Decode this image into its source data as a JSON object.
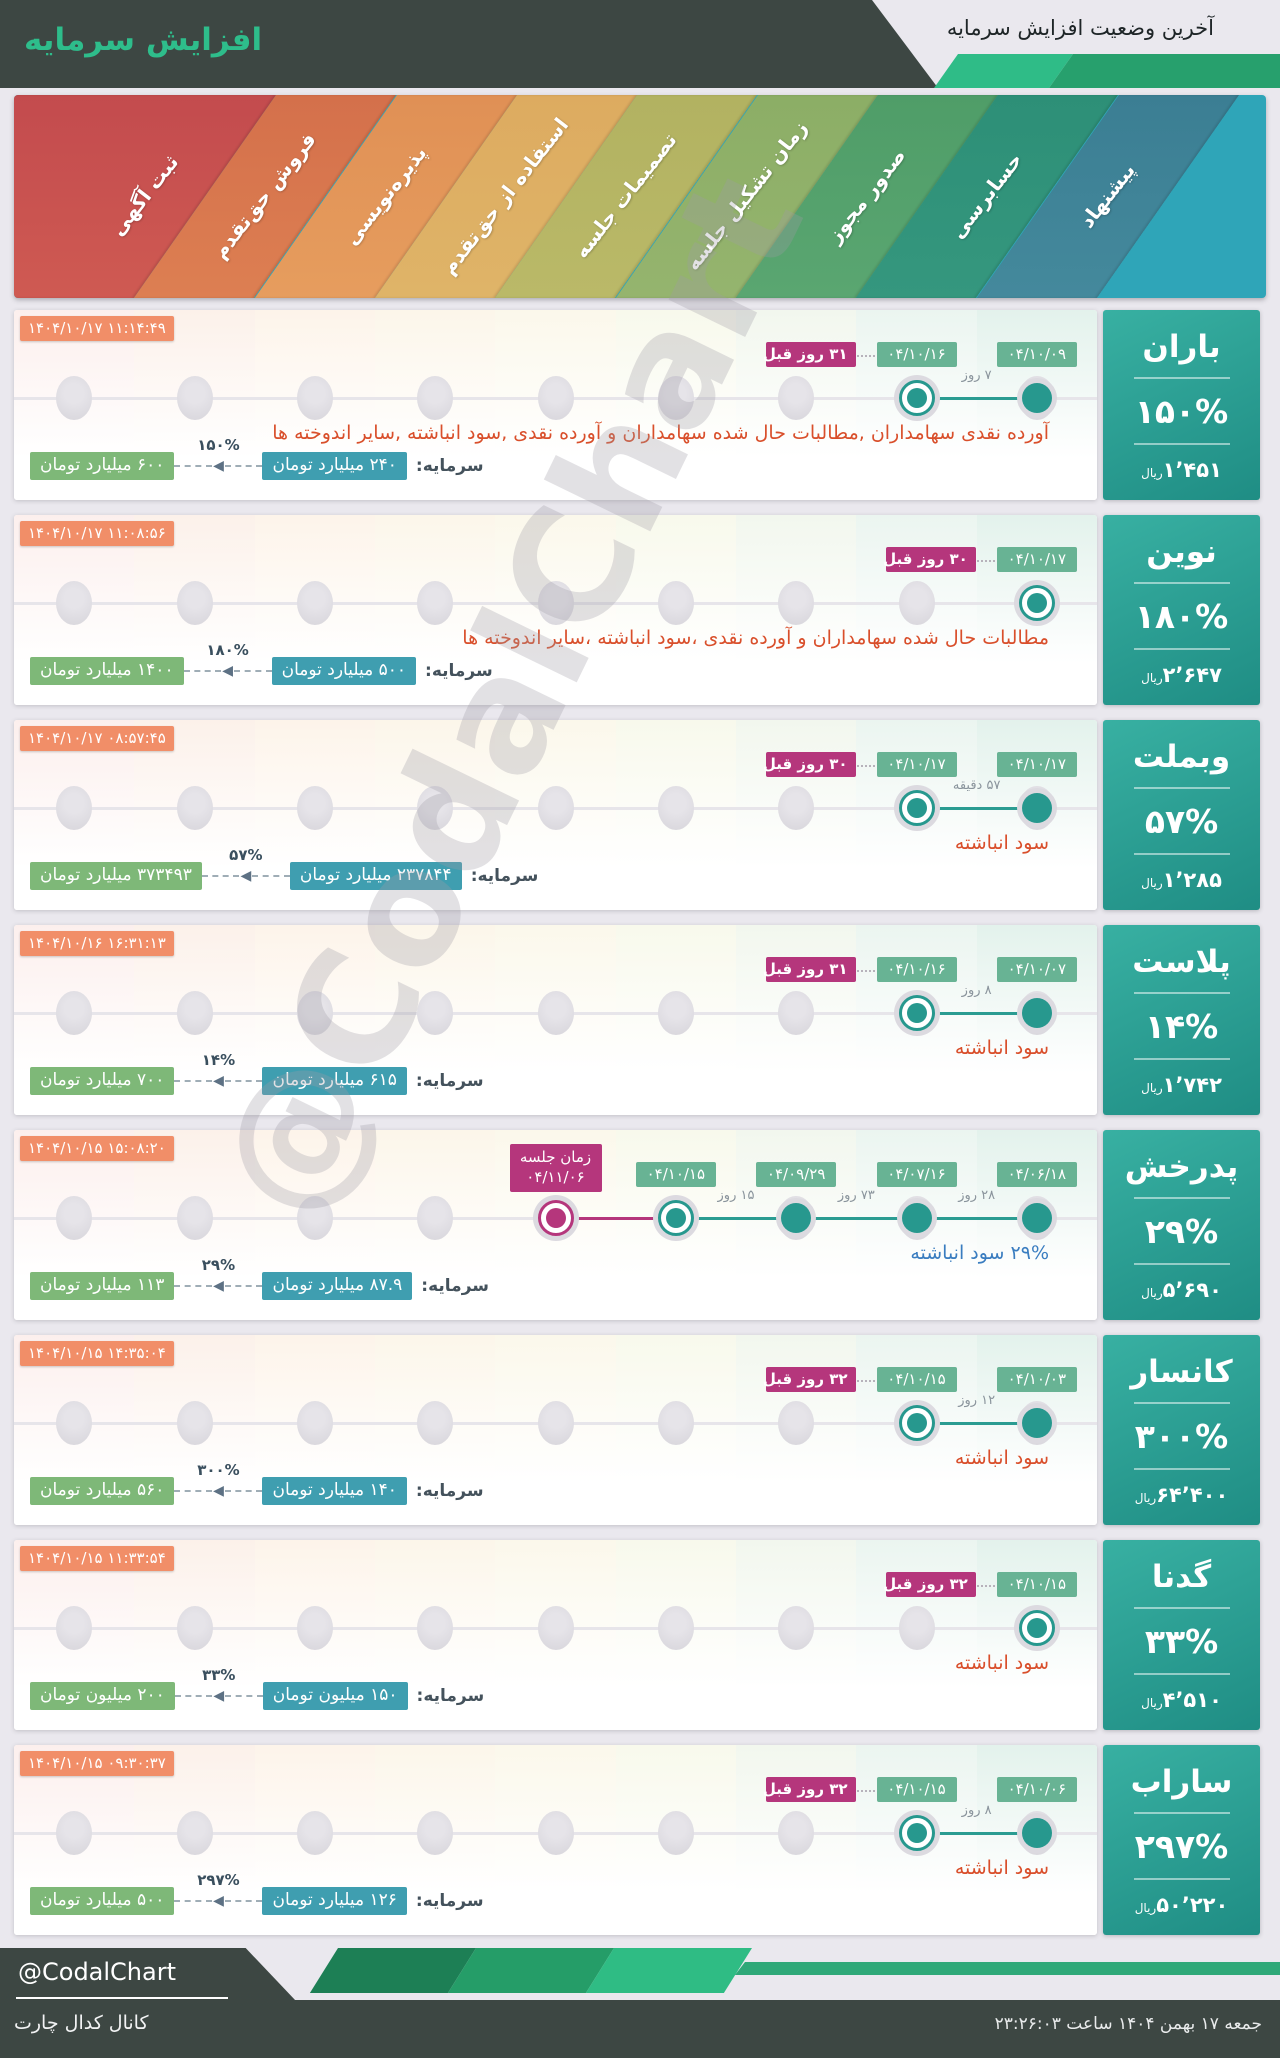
{
  "header": {
    "title": "افزایش سرمایه",
    "subtitle": "آخرین وضعیت افزایش سرمایه"
  },
  "stages": [
    {
      "label": "ثبت آگهی",
      "color": "#c34b4e",
      "color2": "#cf5a52",
      "tint": "#fcefed"
    },
    {
      "label": "فروش حق‌تقدم",
      "color": "#d4704b",
      "color2": "#dd7f52",
      "tint": "#fcf1ea"
    },
    {
      "label": "پذیره‌نویسی",
      "color": "#e09055",
      "color2": "#e69d5e",
      "tint": "#fdf4ea"
    },
    {
      "label": "استفاده از حق‌تقدم",
      "color": "#ddab60",
      "color2": "#dfb468",
      "tint": "#fcf6ea"
    },
    {
      "label": "تصمیمات جلسه",
      "color": "#b2b261",
      "color2": "#bab968",
      "tint": "#fbf8eb"
    },
    {
      "label": "زمان تشکیل جلسه",
      "color": "#8cae66",
      "color2": "#95b46e",
      "tint": "#f8f9ec"
    },
    {
      "label": "صدور مجوز",
      "color": "#4f9d68",
      "color2": "#5aa671",
      "tint": "#f2f7ee"
    },
    {
      "label": "حسابرسی",
      "color": "#2d8f77",
      "color2": "#35977e",
      "tint": "#ebf5f0"
    },
    {
      "label": "پیشنهاد",
      "color": "#3b7e93",
      "color2": "#44899c",
      "tint": "#e3f2ec"
    }
  ],
  "rows": [
    {
      "company": "باران",
      "percent": "۱۵۰%",
      "price": "۱٬۴۵۱",
      "price_unit": "ریال",
      "timestamp": "۱۴۰۴/۱۰/۱۷ ۱۱:۱۴:۴۹",
      "ago": {
        "label": "۳۱ روز قبل",
        "col": 8
      },
      "events": [
        {
          "col": 8,
          "date": "۰۴/۱۰/۱۶",
          "ringed": true
        },
        {
          "col": 9,
          "date": "۰۴/۱۰/۰۹"
        }
      ],
      "gaps": [
        {
          "label": "۷ روز",
          "cols": [
            8,
            9
          ]
        }
      ],
      "description": "آورده نقدی سهامداران ,مطالبات حال شده سهامداران و آورده نقدی ,سود انباشته ,سایر اندوخته ها",
      "desc_color": "#d94f2b",
      "capital": {
        "label": "سرمایه:",
        "from": "۲۴۰ میلیارد تومان",
        "to": "۶۰۰ میلیارد تومان",
        "percent": "۱۵۰%"
      }
    },
    {
      "company": "نوین",
      "percent": "۱۸۰%",
      "price": "۲٬۶۴۷",
      "price_unit": "ریال",
      "timestamp": "۱۴۰۴/۱۰/۱۷ ۱۱:۰۸:۵۶",
      "ago": {
        "label": "۳۰ روز قبل",
        "col": 9
      },
      "events": [
        {
          "col": 9,
          "date": "۰۴/۱۰/۱۷",
          "ringed": true
        }
      ],
      "gaps": [],
      "description": "مطالبات حال شده سهامداران و آورده نقدی ،سود انباشته ،سایر اندوخته ها",
      "desc_color": "#d94f2b",
      "capital": {
        "label": "سرمایه:",
        "from": "۵۰۰ میلیارد تومان",
        "to": "۱۴۰۰ میلیارد تومان",
        "percent": "۱۸۰%"
      }
    },
    {
      "company": "وبملت",
      "percent": "۵۷%",
      "price": "۱٬۲۸۵",
      "price_unit": "ریال",
      "timestamp": "۱۴۰۴/۱۰/۱۷ ۰۸:۵۷:۴۵",
      "ago": {
        "label": "۳۰ روز قبل",
        "col": 8
      },
      "events": [
        {
          "col": 8,
          "date": "۰۴/۱۰/۱۷",
          "ringed": true
        },
        {
          "col": 9,
          "date": "۰۴/۱۰/۱۷"
        }
      ],
      "gaps": [
        {
          "label": "۵۷ دقیقه",
          "cols": [
            8,
            9
          ]
        }
      ],
      "description": "سود انباشته",
      "desc_color": "#d94f2b",
      "capital": {
        "label": "سرمایه:",
        "from": "۲۳۷۸۴۴ میلیارد تومان",
        "to": "۳۷۳۴۹۳ میلیارد تومان",
        "percent": "۵۷%"
      }
    },
    {
      "company": "پلاست",
      "percent": "۱۴%",
      "price": "۱٬۷۴۲",
      "price_unit": "ریال",
      "timestamp": "۱۴۰۴/۱۰/۱۶ ۱۶:۳۱:۱۳",
      "ago": {
        "label": "۳۱ روز قبل",
        "col": 8
      },
      "events": [
        {
          "col": 8,
          "date": "۰۴/۱۰/۱۶",
          "ringed": true
        },
        {
          "col": 9,
          "date": "۰۴/۱۰/۰۷"
        }
      ],
      "gaps": [
        {
          "label": "۸ روز",
          "cols": [
            8,
            9
          ]
        }
      ],
      "description": "سود انباشته",
      "desc_color": "#d94f2b",
      "capital": {
        "label": "سرمایه:",
        "from": "۶۱۵ میلیارد تومان",
        "to": "۷۰۰ میلیارد تومان",
        "percent": "۱۴%"
      }
    },
    {
      "company": "پدرخش",
      "percent": "۲۹%",
      "price": "۵٬۶۹۰",
      "price_unit": "ریال",
      "timestamp": "۱۴۰۴/۱۰/۱۵ ۱۵:۰۸:۲۰",
      "meeting": {
        "line1": "زمان جلسه",
        "line2": "۰۴/۱۱/۰۶",
        "col": 5
      },
      "events": [
        {
          "col": 5,
          "ringed": true,
          "magenta": true
        },
        {
          "col": 6,
          "date": "۰۴/۱۰/۱۵",
          "ringed": true
        },
        {
          "col": 7,
          "date": "۰۴/۰۹/۲۹"
        },
        {
          "col": 8,
          "date": "۰۴/۰۷/۱۶"
        },
        {
          "col": 9,
          "date": "۰۴/۰۶/۱۸"
        }
      ],
      "gaps": [
        {
          "label": "۱۵ روز",
          "cols": [
            6,
            7
          ]
        },
        {
          "label": "۷۳ روز",
          "cols": [
            7,
            8
          ]
        },
        {
          "label": "۲۸ روز",
          "cols": [
            8,
            9
          ]
        }
      ],
      "description": "۲۹% سود انباشته",
      "desc_color": "#3a7dc0",
      "capital": {
        "label": "سرمایه:",
        "from": "۸۷.۹ میلیارد تومان",
        "to": "۱۱۳ میلیارد تومان",
        "percent": "۲۹%"
      }
    },
    {
      "company": "کانسار",
      "percent": "۳۰۰%",
      "price": "۶۴٬۴۰۰",
      "price_unit": "ریال",
      "timestamp": "۱۴۰۴/۱۰/۱۵ ۱۴:۳۵:۰۴",
      "ago": {
        "label": "۳۲ روز قبل",
        "col": 8
      },
      "events": [
        {
          "col": 8,
          "date": "۰۴/۱۰/۱۵",
          "ringed": true
        },
        {
          "col": 9,
          "date": "۰۴/۱۰/۰۳"
        }
      ],
      "gaps": [
        {
          "label": "۱۲ روز",
          "cols": [
            8,
            9
          ]
        }
      ],
      "description": "سود انباشته",
      "desc_color": "#d94f2b",
      "capital": {
        "label": "سرمایه:",
        "from": "۱۴۰ میلیارد تومان",
        "to": "۵۶۰ میلیارد تومان",
        "percent": "۳۰۰%"
      }
    },
    {
      "company": "گدنا",
      "percent": "۳۳%",
      "price": "۴٬۵۱۰",
      "price_unit": "ریال",
      "timestamp": "۱۴۰۴/۱۰/۱۵ ۱۱:۳۳:۵۴",
      "ago": {
        "label": "۳۲ روز قبل",
        "col": 9
      },
      "events": [
        {
          "col": 9,
          "date": "۰۴/۱۰/۱۵",
          "ringed": true
        }
      ],
      "gaps": [],
      "description": "سود انباشته",
      "desc_color": "#d94f2b",
      "capital": {
        "label": "سرمایه:",
        "from": "۱۵۰ میلیون تومان",
        "to": "۲۰۰ میلیون تومان",
        "percent": "۳۳%"
      }
    },
    {
      "company": "ساراب",
      "percent": "۲۹۷%",
      "price": "۵۰٬۲۲۰",
      "price_unit": "ریال",
      "timestamp": "۱۴۰۴/۱۰/۱۵ ۰۹:۳۰:۳۷",
      "ago": {
        "label": "۳۲ روز قبل",
        "col": 8
      },
      "events": [
        {
          "col": 8,
          "date": "۰۴/۱۰/۱۵",
          "ringed": true
        },
        {
          "col": 9,
          "date": "۰۴/۱۰/۰۶"
        }
      ],
      "gaps": [
        {
          "label": "۸ روز",
          "cols": [
            8,
            9
          ]
        }
      ],
      "description": "سود انباشته",
      "desc_color": "#d94f2b",
      "capital": {
        "label": "سرمایه:",
        "from": "۱۲۶ میلیارد تومان",
        "to": "۵۰۰ میلیارد تومان",
        "percent": "۲۹۷%"
      }
    }
  ],
  "colors": {
    "accent_green": "#2ebd8b",
    "dark": "#3d4743",
    "band_bg_right": "#2fa5b8",
    "timestamp_badge": "#f18e68",
    "ago_badge": "#b5367c",
    "date_badge": "#68b394",
    "dot_teal": "#27988e",
    "dot_magenta": "#b5367c",
    "line_teal": "#2b9c92",
    "capital_from_badge": "#3f9eb0",
    "capital_to_badge": "#7eb878",
    "desc_red": "#d94f2b",
    "desc_blue": "#3a7dc0",
    "footer_stripes": [
      "#1d7f55",
      "#259d68",
      "#2fbc84"
    ],
    "footer_bar": "#2fa878",
    "header_stripes": [
      "#2fbc87",
      "#27a06d"
    ]
  },
  "watermark": "@CodalChart",
  "footer": {
    "handle": "@CodalChart",
    "channel": "کانال کدال چارت",
    "datetime": "جمعه ۱۷ بهمن ۱۴۰۴ ساعت ۲۳:۲۶:۰۳"
  }
}
